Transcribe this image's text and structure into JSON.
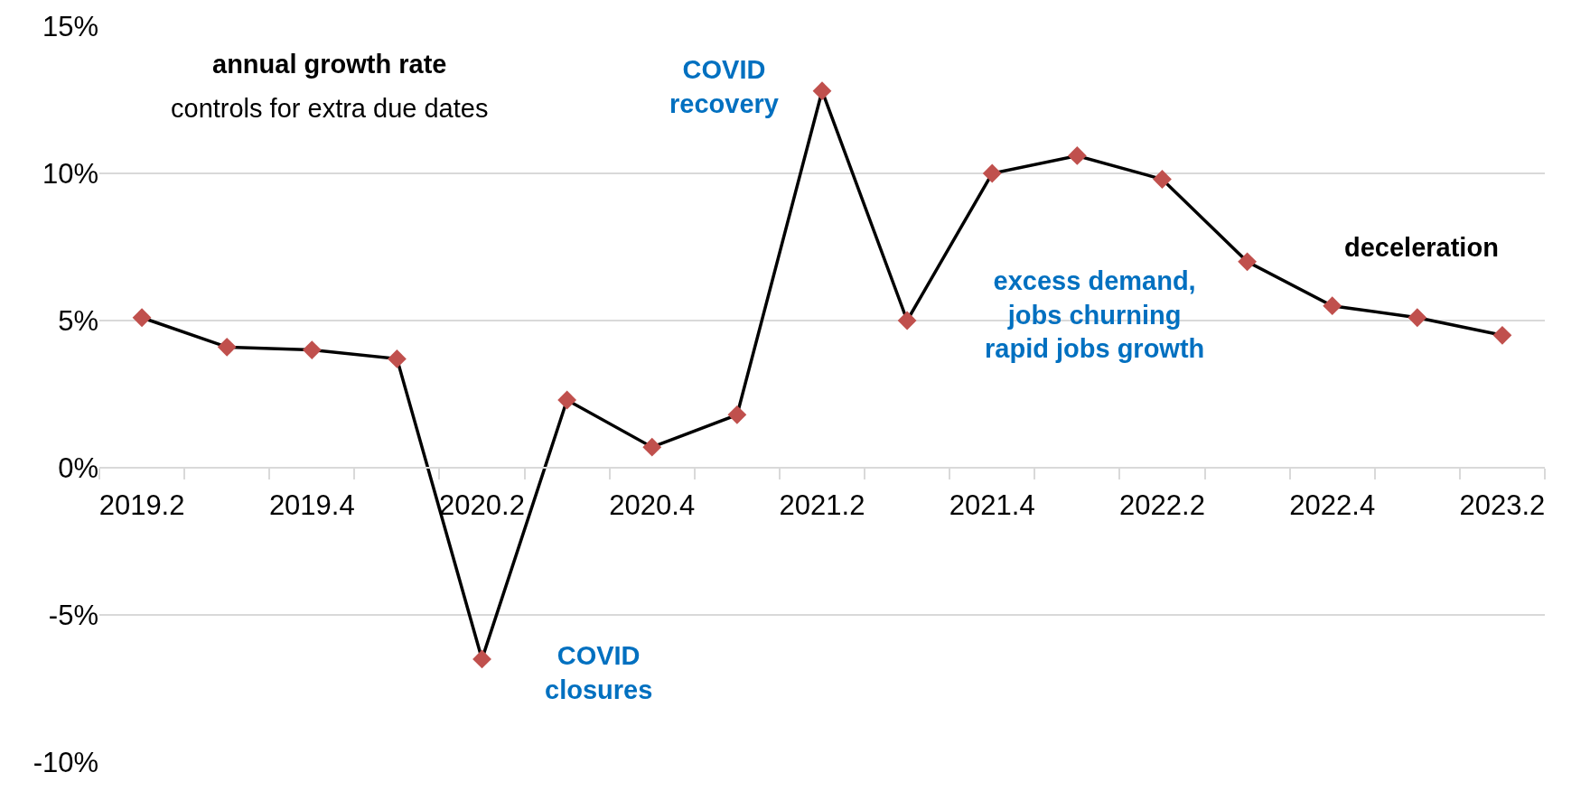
{
  "chart_data": {
    "type": "line",
    "categories": [
      "2019.2",
      null,
      "2019.4",
      null,
      "2020.2",
      null,
      "2020.4",
      null,
      "2021.2",
      null,
      "2021.4",
      null,
      "2022.2",
      null,
      "2022.4",
      null,
      "2023.2"
    ],
    "series": [
      {
        "color": "#000000",
        "colors": [
          "#c0504d",
          "#c0504d",
          "#c0504d",
          "#c0504d",
          "#c0504d",
          "#c0504d",
          "#c0504d",
          "#c0504d",
          "#c0504d",
          "#c0504d",
          "#c0504d",
          "#c0504d",
          "#c0504d",
          "#c0504d",
          "#c0504d",
          "#c0504d",
          "#c0504d"
        ],
        "values": [
          5.1,
          4.1,
          4.0,
          3.7,
          -6.5,
          2.3,
          0.7,
          1.8,
          12.8,
          5.0,
          10.0,
          10.6,
          9.8,
          7.0,
          5.5,
          5.1,
          4.5
        ]
      }
    ],
    "ylim": [
      -10,
      15
    ],
    "yticks": [
      {
        "value": -10,
        "label": "-10%"
      },
      {
        "value": -5,
        "label": "-5%"
      },
      {
        "value": 0,
        "label": "0%"
      },
      {
        "value": 5,
        "label": "5%"
      },
      {
        "value": 10,
        "label": "10%"
      },
      {
        "value": 15,
        "label": "15%"
      }
    ],
    "grid": "y",
    "marker": "diamond",
    "line_style": "solid",
    "annotations": [
      "annual growth rate",
      "controls for extra due dates",
      "COVID\nrecovery",
      "COVID\nclosures",
      "excess demand,\njobs churning\nrapid jobs growth",
      "deceleration"
    ]
  }
}
